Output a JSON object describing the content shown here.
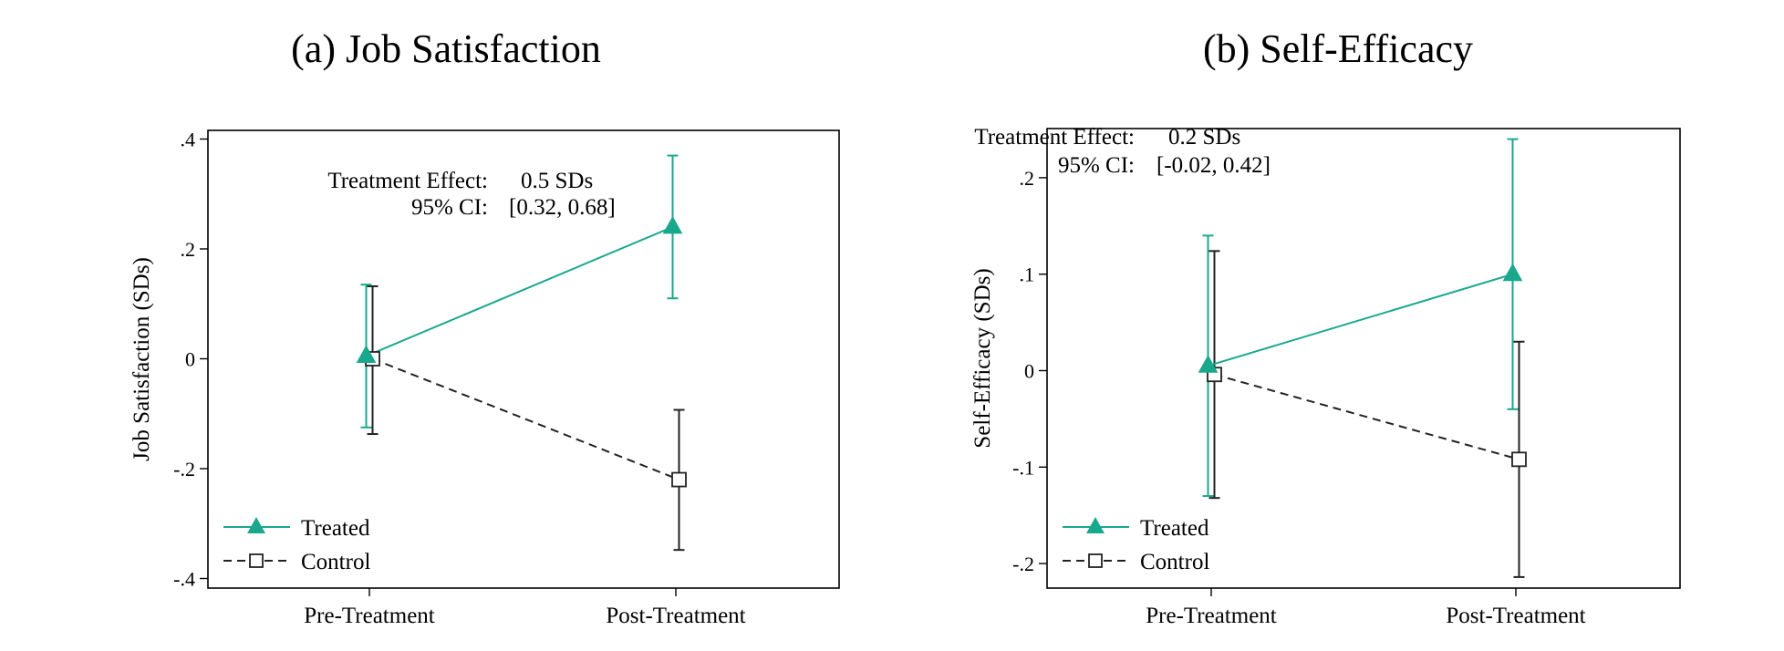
{
  "colors": {
    "treated": "#1aa88c",
    "control": "#222222",
    "frame": "#000000"
  },
  "chart_data": [
    {
      "type": "line",
      "title": "(a) Job Satisfaction",
      "ylabel": "Job Satisfaction (SDs)",
      "xlabel": "",
      "categories": [
        "Pre-Treatment",
        "Post-Treatment"
      ],
      "ylim": [
        -0.42,
        0.42
      ],
      "yticks": [
        -0.4,
        -0.2,
        0,
        0.2,
        0.4
      ],
      "yticklabels": [
        "-.4",
        "-.2",
        "0",
        ".2",
        ".4"
      ],
      "grid": false,
      "legend_position": "bottom-left",
      "series": [
        {
          "name": "Treated",
          "marker": "triangle",
          "style": "solid",
          "values": [
            0.005,
            0.24
          ],
          "ci_low": [
            -0.125,
            0.11
          ],
          "ci_high": [
            0.135,
            0.37
          ]
        },
        {
          "name": "Control",
          "marker": "square",
          "style": "dashed",
          "values": [
            0.0,
            -0.22
          ],
          "ci_low": [
            -0.137,
            -0.348
          ],
          "ci_high": [
            0.132,
            -0.093
          ]
        }
      ],
      "annotation": {
        "line1_label": "Treatment Effect:",
        "line1_value": "0.5 SDs",
        "line2_label": "95% CI:",
        "line2_value": "[0.32, 0.68]"
      }
    },
    {
      "type": "line",
      "title": "(b) Self-Efficacy",
      "ylabel": "Self-Efficacy (SDs)",
      "xlabel": "",
      "categories": [
        "Pre-Treatment",
        "Post-Treatment"
      ],
      "ylim": [
        -0.225,
        0.25
      ],
      "yticks": [
        -0.2,
        -0.1,
        0,
        0.1,
        0.2
      ],
      "yticklabels": [
        "-.2",
        "-.1",
        "0",
        ".1",
        ".2"
      ],
      "grid": false,
      "legend_position": "bottom-left",
      "series": [
        {
          "name": "Treated",
          "marker": "triangle",
          "style": "solid",
          "values": [
            0.005,
            0.1
          ],
          "ci_low": [
            -0.13,
            -0.04
          ],
          "ci_high": [
            0.14,
            0.24
          ]
        },
        {
          "name": "Control",
          "marker": "square",
          "style": "dashed",
          "values": [
            -0.004,
            -0.092
          ],
          "ci_low": [
            -0.132,
            -0.214
          ],
          "ci_high": [
            0.124,
            0.03
          ]
        }
      ],
      "annotation": {
        "line1_label": "Treatment Effect:",
        "line1_value": "0.2 SDs",
        "line2_label": "95% CI:",
        "line2_value": "[-0.02, 0.42]"
      }
    }
  ]
}
